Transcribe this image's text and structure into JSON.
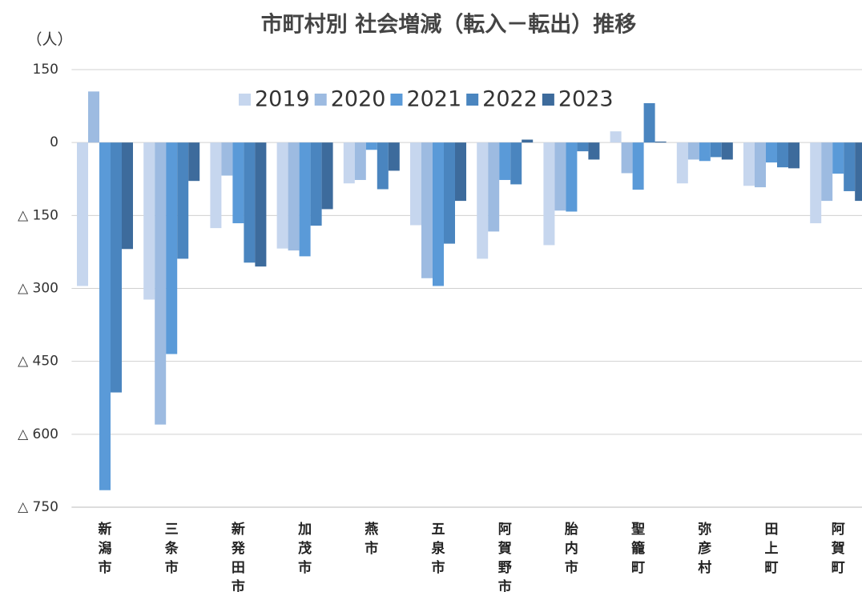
{
  "chart_data": {
    "type": "bar",
    "title": "市町村別 社会増減（転入－転出）推移",
    "y_label": "（人）",
    "categories": [
      "新潟市",
      "三条市",
      "新発田市",
      "加茂市",
      "燕市",
      "五泉市",
      "阿賀野市",
      "胎内市",
      "聖籠町",
      "弥彦村",
      "田上町",
      "阿賀町"
    ],
    "series": [
      {
        "name": "2019",
        "color": "#c6d6ee",
        "values": [
          -295,
          -323,
          -176,
          -218,
          -84,
          -170,
          -239,
          -211,
          23,
          -84,
          -89,
          -166
        ]
      },
      {
        "name": "2020",
        "color": "#9dbbe1",
        "values": [
          105,
          -580,
          -68,
          -222,
          -77,
          -279,
          -183,
          -140,
          -63,
          -35,
          -92,
          -120
        ]
      },
      {
        "name": "2021",
        "color": "#5a9ad8",
        "values": [
          -715,
          -435,
          -166,
          -234,
          -15,
          -295,
          -77,
          -142,
          -97,
          -38,
          -41,
          -64
        ]
      },
      {
        "name": "2022",
        "color": "#4a85bf",
        "values": [
          -514,
          -239,
          -247,
          -171,
          -96,
          -208,
          -86,
          -18,
          81,
          -30,
          -51,
          -100
        ]
      },
      {
        "name": "2023",
        "color": "#3d6b9c",
        "values": [
          -219,
          -79,
          -255,
          -137,
          -58,
          -120,
          6,
          -35,
          2,
          -35,
          -53,
          -120
        ]
      }
    ],
    "ylim": [
      -750,
      150
    ],
    "yticks": [
      {
        "value": -750,
        "label": "△ 750"
      },
      {
        "value": -600,
        "label": "△ 600"
      },
      {
        "value": -450,
        "label": "△ 450"
      },
      {
        "value": -300,
        "label": "△ 300"
      },
      {
        "value": -150,
        "label": "△ 150"
      },
      0,
      150
    ],
    "grid": true,
    "legend": "top"
  }
}
